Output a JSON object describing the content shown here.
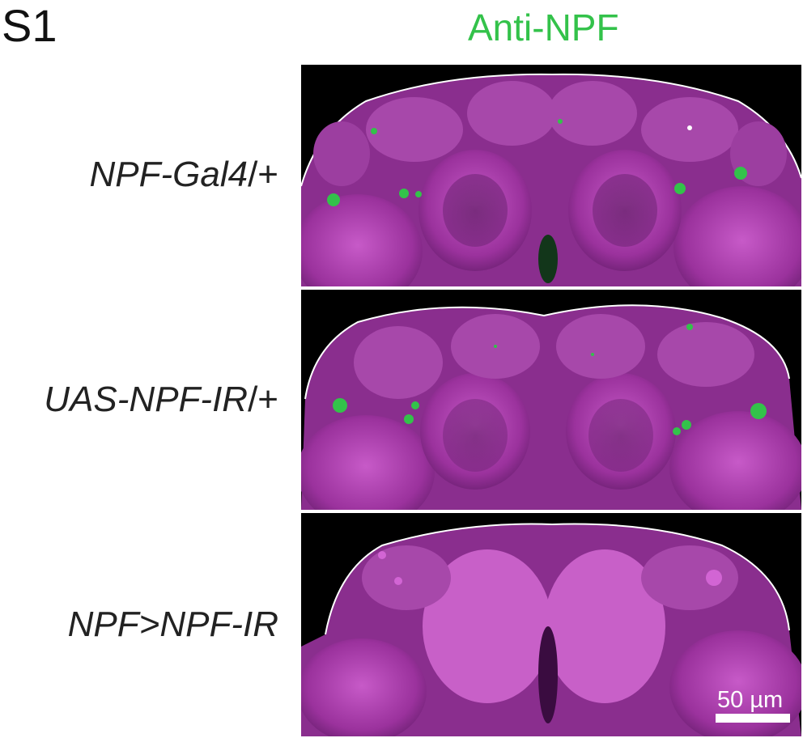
{
  "figure": {
    "panel_label": "S1",
    "stain_title": "Anti-NPF",
    "rows": [
      {
        "label_main": "NPF-Gal4",
        "label_suffix": "/+"
      },
      {
        "label_main": "UAS-NPF-IR",
        "label_suffix": "/+"
      },
      {
        "label_main": "NPF>NPF-IR",
        "label_suffix": ""
      }
    ],
    "scale_bar_label": "50 µm"
  },
  "colors": {
    "stain_green": "#33c24a",
    "tissue_magenta": "#b040b0",
    "background": "#000000",
    "scale_bar": "#ffffff"
  }
}
